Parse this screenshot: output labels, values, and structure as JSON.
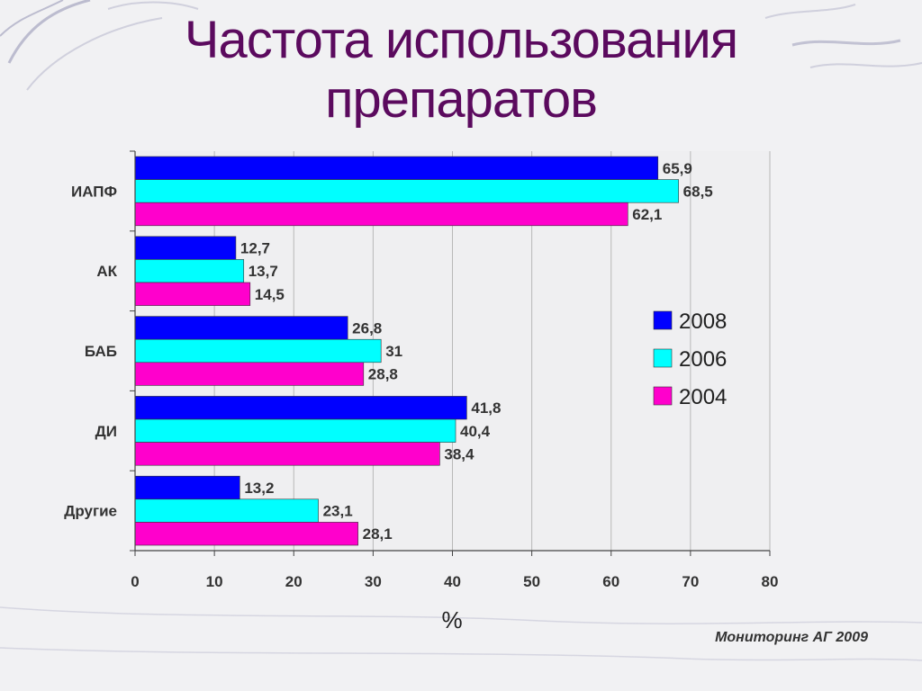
{
  "slide": {
    "title_line1": "Частота использования",
    "title_line2": "препаратов",
    "source_note": "Мониторинг АГ 2009"
  },
  "colors": {
    "title": "#5b0a5e",
    "series_2008": "#0000ff",
    "series_2006": "#00ffff",
    "series_2004": "#ff00cc"
  },
  "chart_data": {
    "type": "bar",
    "orientation": "horizontal",
    "categories": [
      "ИАПФ",
      "АК",
      "БАБ",
      "ДИ",
      "Другие"
    ],
    "series": [
      {
        "name": "2008",
        "color": "#0000ff",
        "values": [
          65.9,
          12.7,
          26.8,
          41.8,
          13.2
        ],
        "labels": [
          "65,9",
          "12,7",
          "26,8",
          "41,8",
          "13,2"
        ]
      },
      {
        "name": "2006",
        "color": "#00ffff",
        "values": [
          68.5,
          13.7,
          31,
          40.4,
          23.1
        ],
        "labels": [
          "68,5",
          "13,7",
          "31",
          "40,4",
          "23,1"
        ]
      },
      {
        "name": "2004",
        "color": "#ff00cc",
        "values": [
          62.1,
          14.5,
          28.8,
          38.4,
          28.1
        ],
        "labels": [
          "62,1",
          "14,5",
          "28,8",
          "38,4",
          "28,1"
        ]
      }
    ],
    "xlabel": "%",
    "ylabel": "",
    "xlim": [
      0,
      80
    ],
    "xticks": [
      "0",
      "10",
      "20",
      "30",
      "40",
      "50",
      "60",
      "70",
      "80"
    ],
    "grid": true,
    "legend": "right"
  }
}
